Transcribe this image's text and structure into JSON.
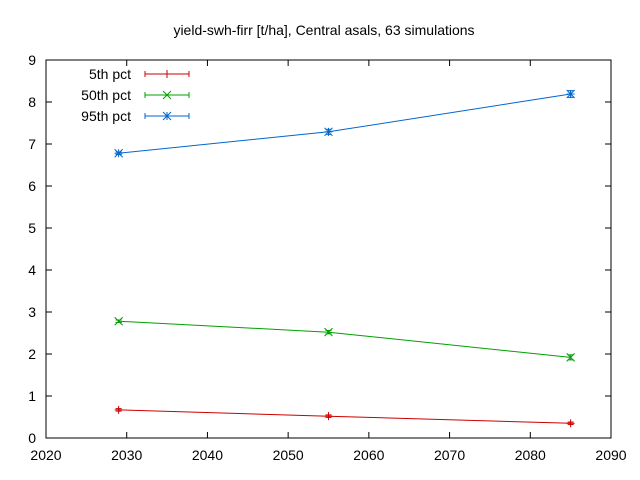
{
  "chart_data": {
    "type": "line",
    "title": "yield-swh-firr [t/ha], Central asals, 63 simulations",
    "xlabel": "",
    "ylabel": "",
    "xlim": [
      2020,
      2090
    ],
    "ylim": [
      0,
      9
    ],
    "xticks": [
      2020,
      2030,
      2040,
      2050,
      2060,
      2070,
      2080,
      2090
    ],
    "yticks": [
      0,
      1,
      2,
      3,
      4,
      5,
      6,
      7,
      8,
      9
    ],
    "grid": false,
    "legend_position": "top-left",
    "x": [
      2029,
      2055,
      2085
    ],
    "series": [
      {
        "name": "5th pct",
        "color": "#cc0000",
        "marker": "plus",
        "values": [
          0.67,
          0.52,
          0.35
        ],
        "err": [
          0.03,
          0.03,
          0.03
        ]
      },
      {
        "name": "50th pct",
        "color": "#00a000",
        "marker": "cross",
        "values": [
          2.78,
          2.52,
          1.92
        ],
        "err": [
          0.03,
          0.04,
          0.06
        ]
      },
      {
        "name": "95th pct",
        "color": "#0066cc",
        "marker": "star",
        "values": [
          6.78,
          7.29,
          8.19
        ],
        "err": [
          0.03,
          0.06,
          0.08
        ]
      }
    ]
  }
}
